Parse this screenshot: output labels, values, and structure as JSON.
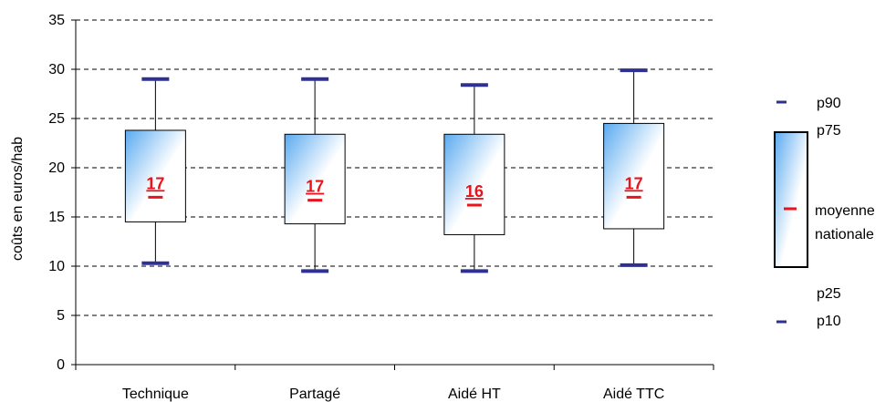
{
  "chart_data": {
    "type": "boxplot",
    "ylabel": "coûts en euros/hab",
    "xlabel": "",
    "ylim": [
      0,
      35
    ],
    "yticks": [
      0,
      5,
      10,
      15,
      20,
      25,
      30,
      35
    ],
    "grid": "horizontal-dashed",
    "legend_placement": "right",
    "categories": [
      "Technique",
      "Partagé",
      "Aidé HT",
      "Aidé TTC"
    ],
    "boxes": [
      {
        "category": "Technique",
        "p10": 10.3,
        "p25": 14.5,
        "mean": 17.0,
        "p75": 23.8,
        "p90": 29.0,
        "mean_label": "17"
      },
      {
        "category": "Partagé",
        "p10": 9.5,
        "p25": 14.3,
        "mean": 16.7,
        "p75": 23.4,
        "p90": 29.0,
        "mean_label": "17"
      },
      {
        "category": "Aidé HT",
        "p10": 9.5,
        "p25": 13.2,
        "mean": 16.2,
        "p75": 23.4,
        "p90": 28.4,
        "mean_label": "16"
      },
      {
        "category": "Aidé TTC",
        "p10": 10.1,
        "p25": 13.8,
        "mean": 17.0,
        "p75": 24.5,
        "p90": 29.9,
        "mean_label": "17"
      }
    ],
    "colors": {
      "percentile_marker": "#2e3192",
      "mean_marker": "#e8131b",
      "box_fill_start": "#5aaaf0",
      "box_fill_end": "#ffffff",
      "grid": "#000000"
    }
  },
  "legend": {
    "p90": "p90",
    "p75": "p75",
    "mean_line1": "moyenne",
    "mean_line2": "nationale",
    "p25": "p25",
    "p10": "p10"
  }
}
